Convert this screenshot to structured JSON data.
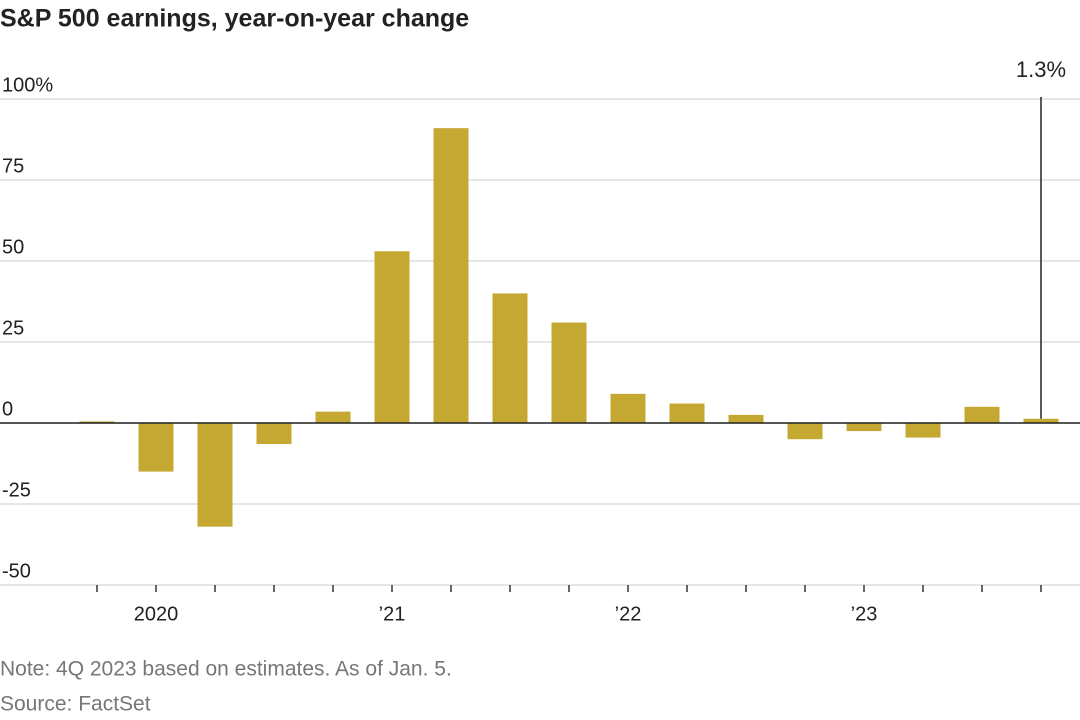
{
  "chart_data": {
    "type": "bar",
    "title": "S&P 500 earnings, year-on-year change",
    "categories": [
      null,
      "2020",
      null,
      null,
      null,
      "’21",
      null,
      null,
      null,
      "’22",
      null,
      null,
      null,
      "’23",
      null,
      null,
      null
    ],
    "values": [
      0.5,
      -15,
      -32,
      -6.5,
      3.5,
      53,
      91,
      40,
      31,
      9,
      6,
      2.5,
      -5,
      -2.5,
      -4.5,
      5,
      1.3
    ],
    "value_labels": [
      null,
      null,
      null,
      null,
      null,
      null,
      null,
      null,
      null,
      null,
      null,
      null,
      null,
      null,
      null,
      null,
      "1.3%"
    ],
    "color": "#c4a832",
    "ylim": [
      -50,
      100
    ],
    "yticks": [
      -50,
      -25,
      0,
      25,
      50,
      75,
      {
        "value": 100,
        "label": "100%"
      }
    ],
    "grid": true,
    "note": "Note: 4Q 2023 based on estimates. As of Jan. 5.",
    "source": "Source: FactSet"
  }
}
